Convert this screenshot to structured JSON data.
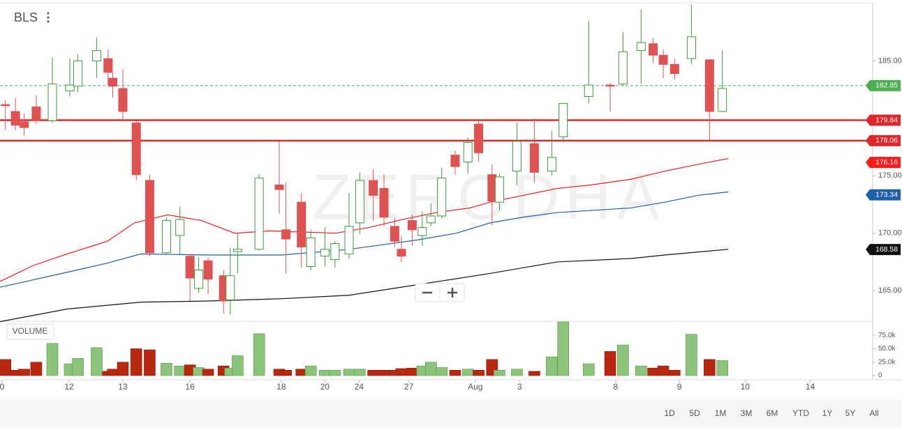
{
  "header": {
    "symbol": "BLS"
  },
  "watermark": "ZERODHA",
  "range_buttons": [
    "1D",
    "5D",
    "1M",
    "3M",
    "6M",
    "YTD",
    "1Y",
    "5Y",
    "All"
  ],
  "chart_data": {
    "type": "candlestick",
    "up_color": "#3a9d3a",
    "down_color": "#e05252",
    "x": [
      0.8,
      2.3,
      3.6,
      5.4,
      7.8,
      10.4,
      11.6,
      14.4,
      16.1,
      16.8,
      18.3,
      20.3,
      22.3,
      24.8,
      26.8,
      28.3,
      29.6,
      31,
      33.3,
      34.3,
      35.4,
      38.6,
      41.6,
      42.6,
      44.9,
      46.3,
      48.4,
      49.9,
      52,
      53.6,
      55.6,
      57.2,
      58.8,
      59.8,
      61.4,
      62.9,
      64.2,
      65.8,
      67.8,
      69.7,
      71.3,
      73.3,
      74.4,
      77,
      79.6,
      82.2,
      83.9,
      87.7,
      90.9,
      92.8,
      95.5,
      97.3,
      98.8,
      100.5,
      103,
      105.7,
      107.6
    ],
    "open": [
      181.2,
      180.6,
      179.7,
      181.0,
      179.8,
      182.4,
      182.8,
      185.0,
      185.2,
      183.5,
      182.6,
      179.6,
      174.6,
      168.3,
      169.8,
      168.0,
      165.2,
      167.6,
      166.3,
      164.2,
      168.4,
      168.6,
      174.2,
      170.3,
      172.7,
      167.1,
      168.0,
      167.7,
      168.2,
      170.9,
      174.6,
      173.9,
      170.6,
      168.6,
      171.1,
      169.8,
      170.9,
      171.5,
      176.8,
      176.2,
      179.5,
      175.1,
      172.7,
      175.4,
      177.8,
      175.4,
      178.4,
      181.9,
      182.9,
      183.0,
      185.9,
      186.5,
      185.5,
      184.7,
      185.2,
      185.1,
      180.6
    ],
    "high": [
      181.6,
      181.8,
      180.4,
      182.0,
      185.3,
      185.2,
      185.6,
      187.0,
      186.0,
      184.0,
      184.3,
      179.8,
      175.1,
      171.4,
      172.3,
      168.2,
      167.9,
      167.9,
      166.8,
      168.7,
      170.0,
      175.1,
      178.0,
      174.4,
      173.5,
      170.3,
      170.5,
      169.3,
      173.5,
      175.3,
      175.6,
      175.1,
      171.3,
      169.7,
      171.6,
      171.9,
      172.6,
      175.7,
      177.2,
      178.3,
      179.9,
      176.0,
      175.2,
      179.6,
      180.0,
      178.9,
      181.3,
      188.5,
      183.1,
      187.5,
      189.5,
      187.0,
      186.0,
      185.2,
      189.9,
      185.1,
      185.9
    ],
    "low": [
      179.0,
      179.0,
      178.5,
      179.5,
      179.6,
      181.9,
      182.3,
      183.5,
      182.9,
      181.8,
      179.8,
      174.6,
      168.0,
      168.2,
      168.1,
      164.1,
      164.8,
      164.7,
      163.0,
      162.9,
      166.5,
      168.5,
      171.7,
      166.5,
      167.0,
      166.8,
      167.1,
      167.0,
      167.8,
      169.9,
      171.1,
      170.6,
      168.8,
      167.5,
      168.9,
      168.9,
      170.6,
      171.3,
      175.1,
      175.2,
      176.2,
      170.7,
      172.0,
      174.2,
      174.4,
      175.0,
      177.9,
      181.3,
      180.6,
      182.8,
      183.0,
      184.8,
      183.5,
      183.4,
      184.7,
      178.1,
      180.6
    ],
    "close": [
      181.1,
      179.4,
      179.2,
      179.8,
      183.0,
      182.9,
      185.0,
      185.9,
      184.0,
      182.8,
      180.6,
      175.1,
      168.3,
      171.1,
      171.2,
      166.1,
      166.8,
      166.0,
      164.1,
      166.3,
      168.6,
      174.8,
      173.8,
      169.5,
      168.8,
      169.6,
      168.6,
      169.1,
      170.6,
      174.6,
      173.3,
      171.4,
      169.3,
      168.0,
      170.3,
      170.5,
      171.5,
      174.8,
      175.8,
      177.9,
      177.0,
      172.8,
      174.9,
      178.0,
      175.3,
      176.6,
      181.3,
      182.9,
      182.8,
      185.8,
      186.6,
      185.5,
      184.7,
      183.9,
      187.1,
      180.6,
      182.6
    ],
    "xlim": [
      0,
      130
    ],
    "xticks": [
      {
        "value": 0.3,
        "label": "0"
      },
      {
        "value": 10.3,
        "label": "12"
      },
      {
        "value": 18.3,
        "label": "13"
      },
      {
        "value": 28.3,
        "label": "16"
      },
      {
        "value": 41.9,
        "label": "18"
      },
      {
        "value": 48.4,
        "label": "20"
      },
      {
        "value": 53.5,
        "label": "24"
      },
      {
        "value": 60.9,
        "label": "27"
      },
      {
        "value": 70.8,
        "label": "Aug"
      },
      {
        "value": 77.4,
        "label": "3"
      },
      {
        "value": 91.7,
        "label": "8"
      },
      {
        "value": 101.2,
        "label": "9"
      },
      {
        "value": 111,
        "label": "10"
      },
      {
        "value": 120.7,
        "label": "14"
      }
    ],
    "ylim": [
      162.4,
      190
    ],
    "yticks": [
      {
        "value": 165,
        "label": "165.00"
      },
      {
        "value": 170,
        "label": "170.00"
      },
      {
        "value": 175,
        "label": "175.00"
      },
      {
        "value": 185,
        "label": "185.00"
      }
    ],
    "levels": [
      {
        "value": 182.85,
        "color": "#4caf50",
        "style": "dashed"
      },
      {
        "value": 179.84,
        "color": "#e0262b",
        "style": "solid"
      },
      {
        "value": 178.06,
        "color": "#e0262b",
        "style": "solid"
      }
    ],
    "moving_averages": [
      {
        "color": "#ff1a1a",
        "last": 176.16,
        "x": [
          0,
          5,
          10,
          16,
          20,
          25,
          30,
          35,
          40,
          50,
          55,
          60,
          65,
          70,
          73,
          78,
          83,
          88,
          94,
          99,
          104,
          108.5
        ],
        "values": [
          165.8,
          167.2,
          168.2,
          169.3,
          170.9,
          171.6,
          171.1,
          170.0,
          170.2,
          170.0,
          170.5,
          171.2,
          171.8,
          172.2,
          172.7,
          173.3,
          173.9,
          174.2,
          174.7,
          175.4,
          176.0,
          176.5
        ]
      },
      {
        "color": "#1f5fa8",
        "last": 173.34,
        "x": [
          0,
          10,
          16,
          21,
          31,
          42,
          52,
          62,
          68,
          73,
          78,
          83,
          94,
          99,
          104,
          108.5
        ],
        "values": [
          165.3,
          166.6,
          167.4,
          168.2,
          168.1,
          168.1,
          168.6,
          169.4,
          170.0,
          170.9,
          171.4,
          171.8,
          172.2,
          172.7,
          173.3,
          173.6
        ]
      },
      {
        "color": "#111111",
        "last": 168.58,
        "x": [
          0,
          10,
          21,
          31,
          42,
          52,
          62,
          73,
          83,
          94,
          99,
          108.5
        ],
        "values": [
          162.3,
          163.4,
          164.0,
          164.1,
          164.3,
          164.6,
          165.5,
          166.5,
          167.5,
          167.8,
          168.1,
          168.6
        ]
      }
    ],
    "volume": {
      "title": "VOLUME",
      "up_color": "#8bc47a",
      "down_color": "#b8280f",
      "values": [
        30000,
        10000,
        12000,
        25000,
        60000,
        22000,
        32000,
        52000,
        8000,
        12000,
        25000,
        50000,
        48000,
        23000,
        18000,
        20000,
        15000,
        12000,
        18000,
        14000,
        37000,
        78000,
        12000,
        10000,
        12000,
        18000,
        10000,
        10000,
        12000,
        12000,
        10000,
        10000,
        10000,
        13000,
        14000,
        18000,
        25000,
        15000,
        10000,
        12000,
        10000,
        30000,
        10000,
        12000,
        8000,
        35000,
        100000,
        22000,
        45000,
        57000,
        18000,
        14000,
        18000,
        10000,
        77000,
        30000,
        28000
      ],
      "ylim": [
        0,
        100000
      ],
      "yticks": [
        0,
        {
          "value": 25000,
          "label": "25.0k"
        },
        {
          "value": 50000,
          "label": "50.0k"
        },
        {
          "value": 75000,
          "label": "75.0k"
        }
      ]
    }
  }
}
